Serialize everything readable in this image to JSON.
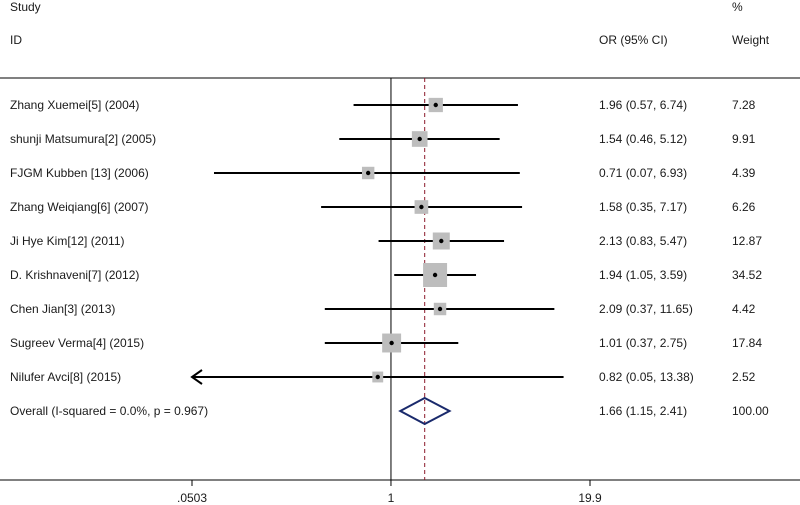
{
  "header": {
    "study": "Study",
    "id": "ID",
    "or_label": "OR (95% CI)",
    "pct": "%",
    "weight": "Weight"
  },
  "chart_data": {
    "type": "forest",
    "x_scale": "log",
    "xlim": [
      0.0503,
      19.9
    ],
    "xticks": [
      ".0503",
      "1",
      "19.9"
    ],
    "null_line": 1,
    "pooled_line": 1.66,
    "studies": [
      {
        "label": "Zhang Xuemei[5] (2004)",
        "or": 1.96,
        "lo": 0.57,
        "hi": 6.74,
        "ci_text": "1.96 (0.57, 6.74)",
        "weight": 7.28,
        "weight_text": "7.28"
      },
      {
        "label": "shunji Matsumura[2] (2005)",
        "or": 1.54,
        "lo": 0.46,
        "hi": 5.12,
        "ci_text": "1.54 (0.46, 5.12)",
        "weight": 9.91,
        "weight_text": "9.91"
      },
      {
        "label": "FJGM Kubben [13] (2006)",
        "or": 0.71,
        "lo": 0.07,
        "hi": 6.93,
        "ci_text": "0.71 (0.07, 6.93)",
        "weight": 4.39,
        "weight_text": "4.39"
      },
      {
        "label": "Zhang Weiqiang[6] (2007)",
        "or": 1.58,
        "lo": 0.35,
        "hi": 7.17,
        "ci_text": "1.58 (0.35, 7.17)",
        "weight": 6.26,
        "weight_text": "6.26"
      },
      {
        "label": "Ji Hye Kim[12] (2011)",
        "or": 2.13,
        "lo": 0.83,
        "hi": 5.47,
        "ci_text": "2.13 (0.83, 5.47)",
        "weight": 12.87,
        "weight_text": "12.87"
      },
      {
        "label": "D. Krishnaveni[7] (2012)",
        "or": 1.94,
        "lo": 1.05,
        "hi": 3.59,
        "ci_text": "1.94 (1.05, 3.59)",
        "weight": 34.52,
        "weight_text": "34.52"
      },
      {
        "label": "Chen Jian[3] (2013)",
        "or": 2.09,
        "lo": 0.37,
        "hi": 11.65,
        "ci_text": "2.09 (0.37, 11.65)",
        "weight": 4.42,
        "weight_text": "4.42"
      },
      {
        "label": "Sugreev Verma[4] (2015)",
        "or": 1.01,
        "lo": 0.37,
        "hi": 2.75,
        "ci_text": "1.01 (0.37, 2.75)",
        "weight": 17.84,
        "weight_text": "17.84"
      },
      {
        "label": "Nilufer Avci[8] (2015)",
        "or": 0.82,
        "lo": 0.05,
        "hi": 13.38,
        "ci_text": "0.82 (0.05, 13.38)",
        "weight": 2.52,
        "weight_text": "2.52"
      }
    ],
    "overall": {
      "label": "Overall  (I-squared = 0.0%, p = 0.967)",
      "or": 1.66,
      "lo": 1.15,
      "hi": 2.41,
      "ci_text": "1.66 (1.15, 2.41)",
      "weight_text": "100.00"
    },
    "colors": {
      "ci_line": "#000000",
      "weight_box": "#bdbdbd",
      "diamond": "#1a2a6c",
      "pooled_line": "#8b1a2b"
    }
  }
}
